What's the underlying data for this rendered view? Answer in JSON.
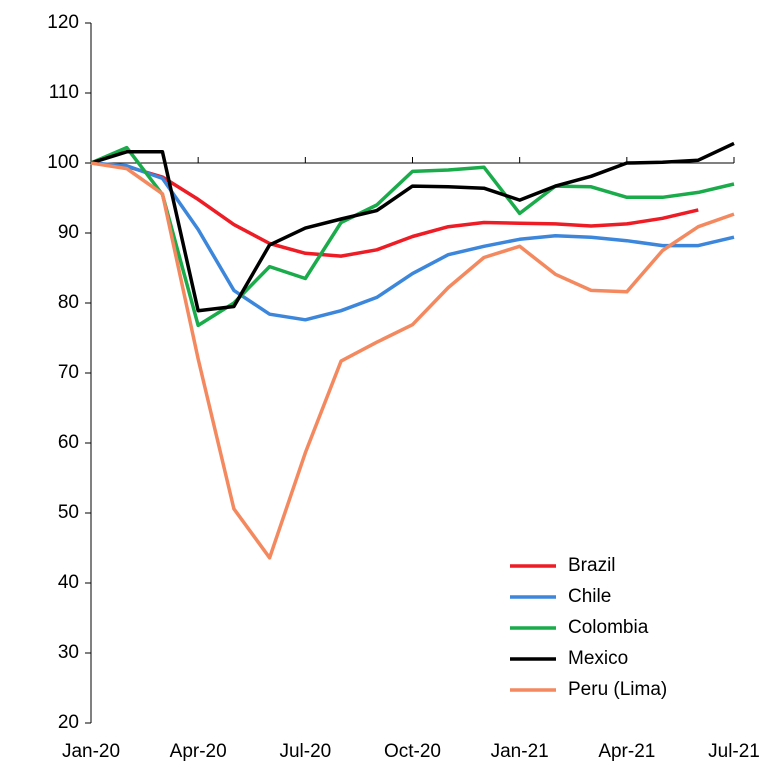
{
  "chart_data": {
    "type": "line",
    "categories": [
      "Jan-20",
      null,
      null,
      "Apr-20",
      null,
      null,
      "Jul-20",
      null,
      null,
      "Oct-20",
      null,
      null,
      "Jan-21",
      null,
      null,
      "Apr-21",
      null,
      null,
      "Jul-21"
    ],
    "series": [
      {
        "name": "Brazil",
        "color": "#ee1c25",
        "values": [
          100,
          99.5,
          98,
          94.8,
          91.2,
          88.5,
          87.1,
          86.7,
          87.6,
          89.5,
          90.9,
          91.5,
          91.4,
          91.3,
          91.0,
          91.3,
          92.1,
          93.3,
          null
        ]
      },
      {
        "name": "Chile",
        "color": "#3c87dc",
        "values": [
          100,
          99.6,
          97.8,
          90.5,
          81.8,
          78.4,
          77.6,
          78.9,
          80.8,
          84.2,
          86.9,
          88.1,
          89.1,
          89.6,
          89.4,
          88.9,
          88.2,
          88.2,
          89.4
        ]
      },
      {
        "name": "Colombia",
        "color": "#1aab4b",
        "values": [
          100,
          102.2,
          95.5,
          76.8,
          80.0,
          85.2,
          83.5,
          91.5,
          94.0,
          98.8,
          99.0,
          99.4,
          92.8,
          96.7,
          96.6,
          95.1,
          95.1,
          95.8,
          97.0
        ]
      },
      {
        "name": "Mexico",
        "color": "#000000",
        "values": [
          100,
          101.6,
          101.6,
          78.9,
          79.5,
          88.3,
          90.7,
          92.0,
          93.2,
          96.7,
          96.6,
          96.4,
          94.7,
          96.7,
          98.1,
          100.0,
          100.1,
          100.4,
          102.8
        ]
      },
      {
        "name": "Peru (Lima)",
        "color": "#f4895f",
        "values": [
          100,
          99.2,
          95.6,
          72.0,
          50.6,
          43.6,
          58.6,
          71.7,
          74.4,
          76.9,
          82.2,
          86.5,
          88.1,
          84.1,
          81.8,
          81.6,
          87.5,
          90.9,
          92.7
        ]
      }
    ],
    "ylim": [
      20,
      120
    ],
    "yticks": [
      20,
      30,
      40,
      50,
      60,
      70,
      80,
      90,
      100,
      110,
      120
    ],
    "xaxis_crosses": 100,
    "legend": "lower right"
  }
}
